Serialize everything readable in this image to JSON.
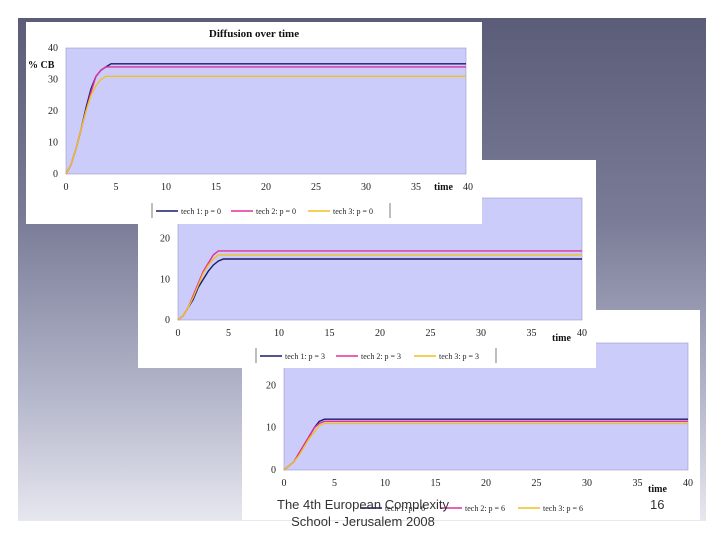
{
  "slide": {
    "footer": [
      "The 4th European Complexity",
      "School - Jerusalem 2008"
    ],
    "page_number": "16"
  },
  "colors": {
    "plot_bg": "#ccccfa",
    "tech1": "#1a1a6e",
    "tech2": "#e0309c",
    "tech3": "#f0c020"
  },
  "chart_data": [
    {
      "type": "line",
      "title": "Diffusion over time",
      "xlabel": "time",
      "ylabel": "% CB",
      "xlim": [
        0,
        40
      ],
      "ylim": [
        0,
        40
      ],
      "xticks": [
        "0",
        "5",
        "10",
        "15",
        "20",
        "25",
        "30",
        "35",
        "40"
      ],
      "yticks": [
        "0",
        "10",
        "20",
        "30",
        "40"
      ],
      "grid": false,
      "legend": "bottom",
      "series": [
        {
          "name": "tech 1: p = 0",
          "color": "#1a1a6e",
          "x": [
            0,
            0.5,
            1,
            1.5,
            2,
            2.5,
            3,
            3.5,
            4,
            4.5,
            40
          ],
          "y": [
            0,
            3,
            8,
            14,
            21,
            27,
            31,
            33,
            34,
            35,
            35
          ]
        },
        {
          "name": "tech 2: p = 0",
          "color": "#e0309c",
          "x": [
            0,
            0.5,
            1,
            1.5,
            2,
            2.5,
            3,
            3.5,
            4,
            4.5,
            40
          ],
          "y": [
            0,
            3,
            8,
            14,
            20,
            26,
            31,
            33,
            34,
            34,
            34
          ]
        },
        {
          "name": "tech 3: p = 0",
          "color": "#f0c020",
          "x": [
            0,
            0.5,
            1,
            1.5,
            2,
            2.5,
            3,
            3.5,
            4,
            4.5,
            40
          ],
          "y": [
            0,
            3,
            8,
            14,
            20,
            25,
            28,
            30,
            31,
            31,
            31
          ]
        }
      ]
    },
    {
      "type": "line",
      "xlabel": "time",
      "xlim": [
        0,
        40
      ],
      "ylim": [
        0,
        30
      ],
      "xticks": [
        "0",
        "5",
        "10",
        "15",
        "20",
        "25",
        "30",
        "35",
        "40"
      ],
      "yticks": [
        "0",
        "10",
        "20"
      ],
      "grid": false,
      "legend": "bottom",
      "series": [
        {
          "name": "tech 1: p = 3",
          "color": "#1a1a6e",
          "x": [
            0,
            0.5,
            1,
            1.5,
            2,
            2.5,
            3,
            3.5,
            4,
            4.5,
            40
          ],
          "y": [
            0,
            1,
            3,
            5,
            8,
            10,
            12,
            13.5,
            14.5,
            15,
            15
          ]
        },
        {
          "name": "tech 2: p = 3",
          "color": "#e0309c",
          "x": [
            0,
            0.5,
            1,
            1.5,
            2,
            2.5,
            3,
            3.5,
            4,
            4.5,
            40
          ],
          "y": [
            0,
            1,
            3,
            6,
            9,
            12,
            14,
            16,
            17,
            17,
            17
          ]
        },
        {
          "name": "tech 3: p = 3",
          "color": "#f0c020",
          "x": [
            0,
            0.5,
            1,
            1.5,
            2,
            2.5,
            3,
            3.5,
            4,
            4.5,
            40
          ],
          "y": [
            0,
            1,
            3,
            5.5,
            8.5,
            11.5,
            13.5,
            15,
            16,
            16,
            16
          ]
        }
      ]
    },
    {
      "type": "line",
      "xlabel": "time",
      "xlim": [
        0,
        40
      ],
      "ylim": [
        0,
        30
      ],
      "xticks": [
        "0",
        "5",
        "10",
        "15",
        "20",
        "25",
        "30",
        "35",
        "40"
      ],
      "yticks": [
        "0",
        "10",
        "20",
        "30"
      ],
      "grid": false,
      "legend": "bottom",
      "series": [
        {
          "name": "tech 1: p = 6",
          "color": "#1a1a6e",
          "x": [
            0,
            0.5,
            1,
            1.5,
            2,
            2.5,
            3,
            3.5,
            4,
            40
          ],
          "y": [
            0,
            1,
            2,
            4,
            6,
            8,
            10,
            11.5,
            12,
            12
          ]
        },
        {
          "name": "tech 2: p = 6",
          "color": "#e0309c",
          "x": [
            0,
            0.5,
            1,
            1.5,
            2,
            2.5,
            3,
            3.5,
            4,
            40
          ],
          "y": [
            0,
            1,
            2,
            4,
            6,
            8,
            10,
            11,
            11.5,
            11.5
          ]
        },
        {
          "name": "tech 3: p = 6",
          "color": "#f0c020",
          "x": [
            0,
            0.5,
            1,
            1.5,
            2,
            2.5,
            3,
            3.5,
            4,
            40
          ],
          "y": [
            0,
            1,
            2,
            3.5,
            5.5,
            7.5,
            9,
            10.5,
            11,
            11
          ]
        }
      ]
    }
  ]
}
